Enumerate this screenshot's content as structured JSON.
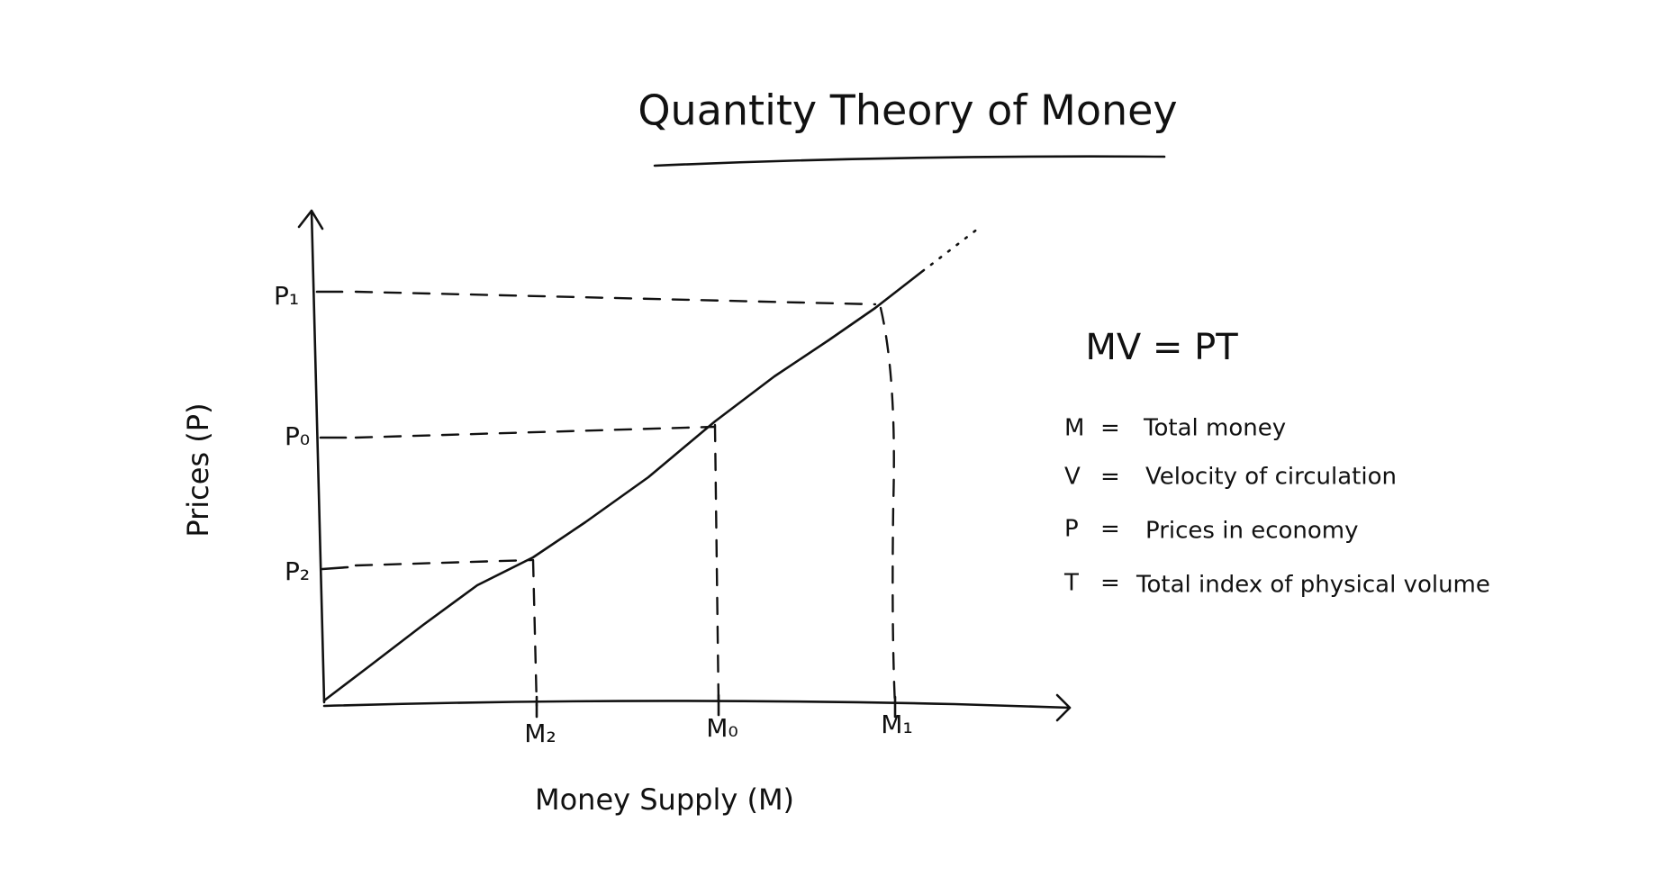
{
  "title": "Quantity Theory of Money",
  "x_axis": {
    "label": "Money Supply (M)",
    "ticks": [
      "M₂",
      "M₀",
      "M₁"
    ]
  },
  "y_axis": {
    "label": "Prices (P)",
    "ticks": [
      "P₁",
      "P₀",
      "P₂"
    ]
  },
  "equation": "MV = PT",
  "definitions": [
    {
      "symbol": "M",
      "sign": "=",
      "text": "Total money"
    },
    {
      "symbol": "V",
      "sign": "=",
      "text": "Velocity of circulation"
    },
    {
      "symbol": "P",
      "sign": "=",
      "text": "Prices in economy"
    },
    {
      "symbol": "T",
      "sign": "=",
      "text": "Total index of physical volume"
    }
  ]
}
